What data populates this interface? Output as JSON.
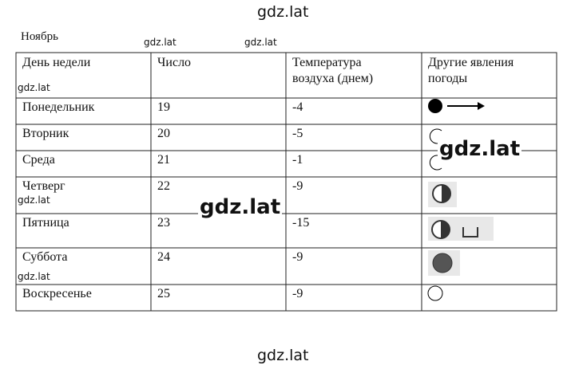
{
  "title": "Ноябрь",
  "table": {
    "header": [
      "День недели",
      "Число",
      "Температура воздуха (днем)",
      "Другие явления погоды"
    ],
    "rows": [
      [
        "Понедельник",
        "19",
        "-4"
      ],
      [
        "Вторник",
        "20",
        "-5"
      ],
      [
        "Среда",
        "21",
        "-1"
      ],
      [
        "Четверг",
        "22",
        "-9"
      ],
      [
        "Пятница",
        "23",
        "-15"
      ],
      [
        "Суббота",
        "24",
        "-9"
      ],
      [
        "Воскресенье",
        "25",
        "-9"
      ]
    ]
  },
  "watermarks": [
    "gdz.lat",
    "gdz.lat",
    "gdz.lat",
    "gdz.lat",
    "gdz.lat",
    "gdz.lat",
    "gdz.lat",
    "gdz.lat",
    "gdz.lat"
  ]
}
